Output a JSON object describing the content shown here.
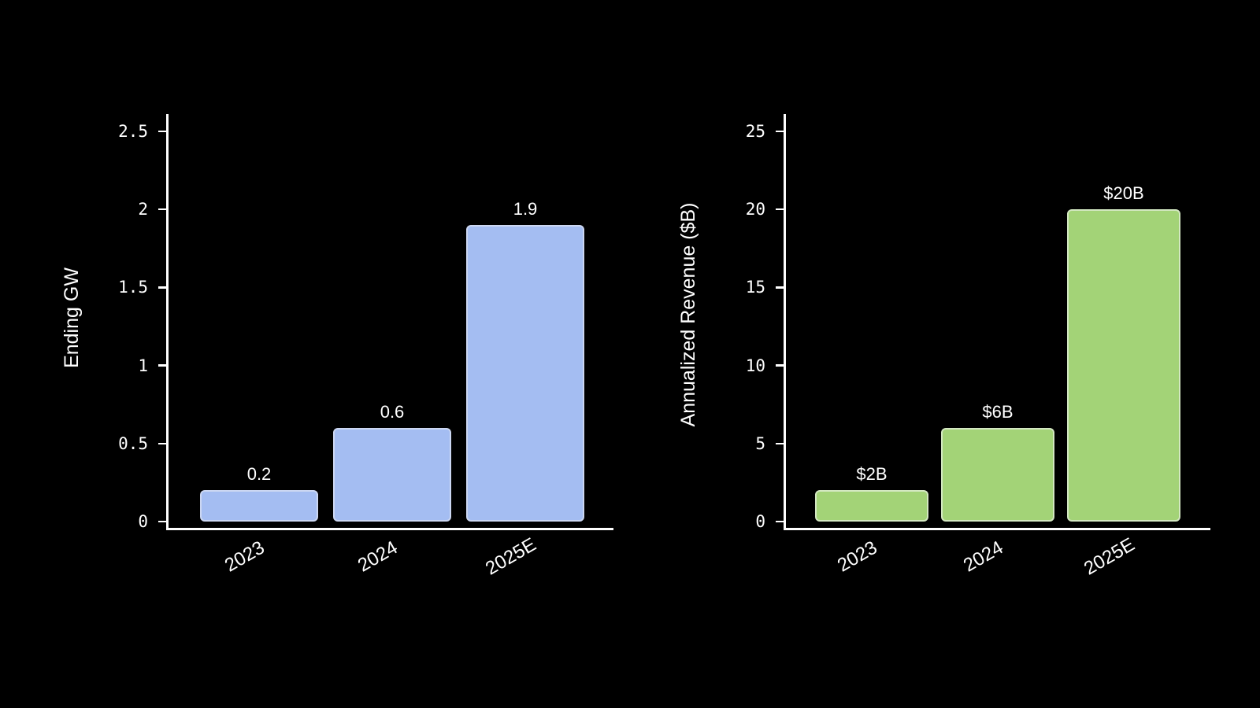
{
  "background": "#000000",
  "chart_data": [
    {
      "type": "bar",
      "title": "",
      "xlabel": "",
      "ylabel": "Ending GW",
      "categories": [
        "2023",
        "2024",
        "2025E"
      ],
      "values": [
        0.2,
        0.6,
        1.9
      ],
      "value_labels": [
        "0.2",
        "0.6",
        "1.9"
      ],
      "yticks": [
        0,
        0.5,
        1,
        1.5,
        2,
        2.5
      ],
      "ytick_labels": [
        "0",
        "0.5",
        "1",
        "1.5",
        "2",
        "2.5"
      ],
      "ylim": [
        0,
        2.61
      ],
      "grid": false,
      "legend": null,
      "bar_color": "#a4bdf2",
      "bar_edge_color": "#ccd7f2",
      "axis_color": "#ffffff",
      "text_color": "#ffffff"
    },
    {
      "type": "bar",
      "title": "",
      "xlabel": "",
      "ylabel": "Annualized Revenue ($B)",
      "categories": [
        "2023",
        "2024",
        "2025E"
      ],
      "values": [
        2,
        6,
        20
      ],
      "value_labels": [
        "$2B",
        "$6B",
        "$20B"
      ],
      "yticks": [
        0,
        5,
        10,
        15,
        20,
        25
      ],
      "ytick_labels": [
        "0",
        "5",
        "10",
        "15",
        "20",
        "25"
      ],
      "ylim": [
        0,
        26.1
      ],
      "grid": false,
      "legend": null,
      "bar_color": "#a3d377",
      "bar_edge_color": "#d4e8c2",
      "axis_color": "#ffffff",
      "text_color": "#ffffff"
    }
  ]
}
